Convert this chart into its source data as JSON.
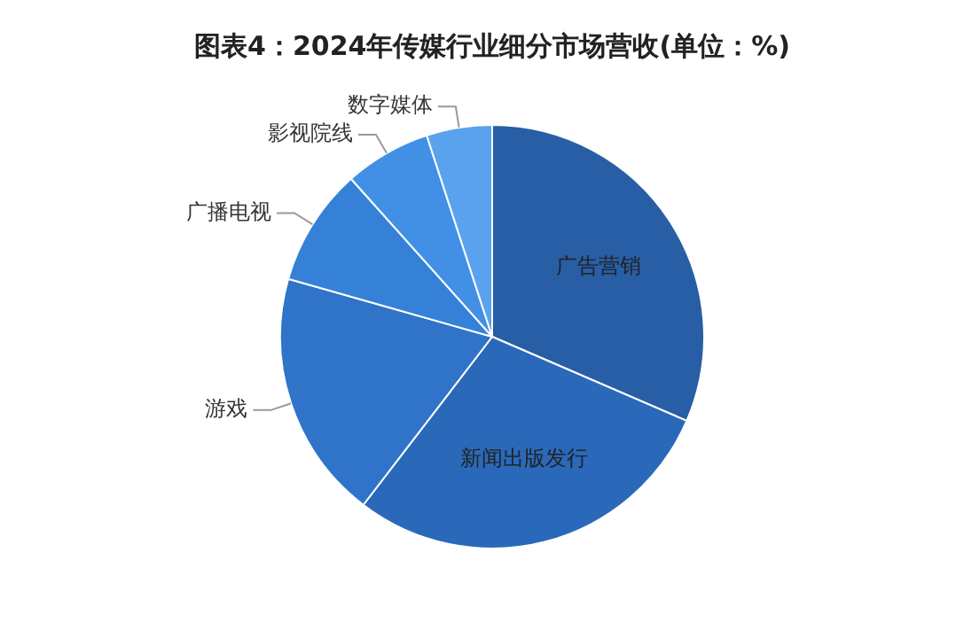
{
  "chart_data": {
    "type": "pie",
    "title": "图表4：2024年传媒行业细分市场营收(单位：%)",
    "categories": [
      "广告营销",
      "新闻出版发行",
      "游戏",
      "广播电视",
      "影视院线",
      "数字媒体"
    ],
    "values": [
      31.5,
      28.9,
      19,
      9,
      6.6,
      5
    ],
    "colors": [
      "#285ea6",
      "#2a69b9",
      "#2f74c9",
      "#3681d8",
      "#4190e6",
      "#5ba2ee"
    ],
    "legend": false
  }
}
